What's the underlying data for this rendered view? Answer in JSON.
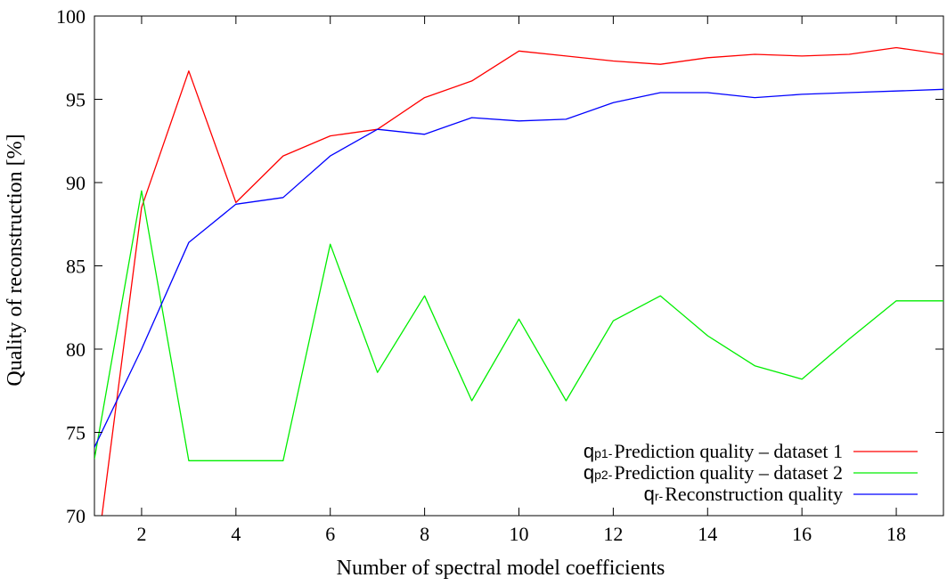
{
  "chart_data": {
    "type": "line",
    "xlabel": "Number of spectral model coefficients",
    "ylabel": "Quality of reconstruction [%]",
    "xlim": [
      1,
      19
    ],
    "ylim": [
      70,
      100
    ],
    "xticks": [
      2,
      4,
      6,
      8,
      10,
      12,
      14,
      16,
      18
    ],
    "yticks": [
      70,
      75,
      80,
      85,
      90,
      95,
      100
    ],
    "grid": false,
    "legend_position": "bottom-right",
    "series": [
      {
        "name": "Prediction quality – dataset 1",
        "symbol": "q",
        "subscript": "p1",
        "color": "#ff0000",
        "x": [
          1,
          2,
          3,
          4,
          5,
          6,
          7,
          8,
          9,
          10,
          11,
          12,
          13,
          14,
          15,
          16,
          17,
          18,
          19
        ],
        "values": [
          66.5,
          88.5,
          96.7,
          88.8,
          91.6,
          92.8,
          93.2,
          95.1,
          96.1,
          97.9,
          97.6,
          97.3,
          97.1,
          97.5,
          97.7,
          97.6,
          97.7,
          98.1,
          97.7
        ]
      },
      {
        "name": "Prediction quality – dataset 2",
        "symbol": "q",
        "subscript": "p2",
        "color": "#00ee00",
        "x": [
          1,
          2,
          3,
          4,
          5,
          6,
          7,
          8,
          9,
          10,
          11,
          12,
          13,
          14,
          15,
          16,
          17,
          18,
          19
        ],
        "values": [
          73.4,
          89.5,
          73.3,
          73.3,
          73.3,
          86.3,
          78.6,
          83.2,
          76.9,
          81.8,
          76.9,
          81.7,
          83.2,
          80.8,
          79.0,
          78.2,
          80.6,
          82.9,
          82.9
        ]
      },
      {
        "name": "Reconstruction quality",
        "symbol": "q",
        "subscript": "r",
        "color": "#0000ff",
        "x": [
          1,
          2,
          3,
          4,
          5,
          6,
          7,
          8,
          9,
          10,
          11,
          12,
          13,
          14,
          15,
          16,
          17,
          18,
          19
        ],
        "values": [
          74.1,
          80.0,
          86.4,
          88.7,
          89.1,
          91.6,
          93.2,
          92.9,
          93.9,
          93.7,
          93.8,
          94.8,
          95.4,
          95.4,
          95.1,
          95.3,
          95.4,
          95.5,
          95.6
        ]
      }
    ]
  }
}
